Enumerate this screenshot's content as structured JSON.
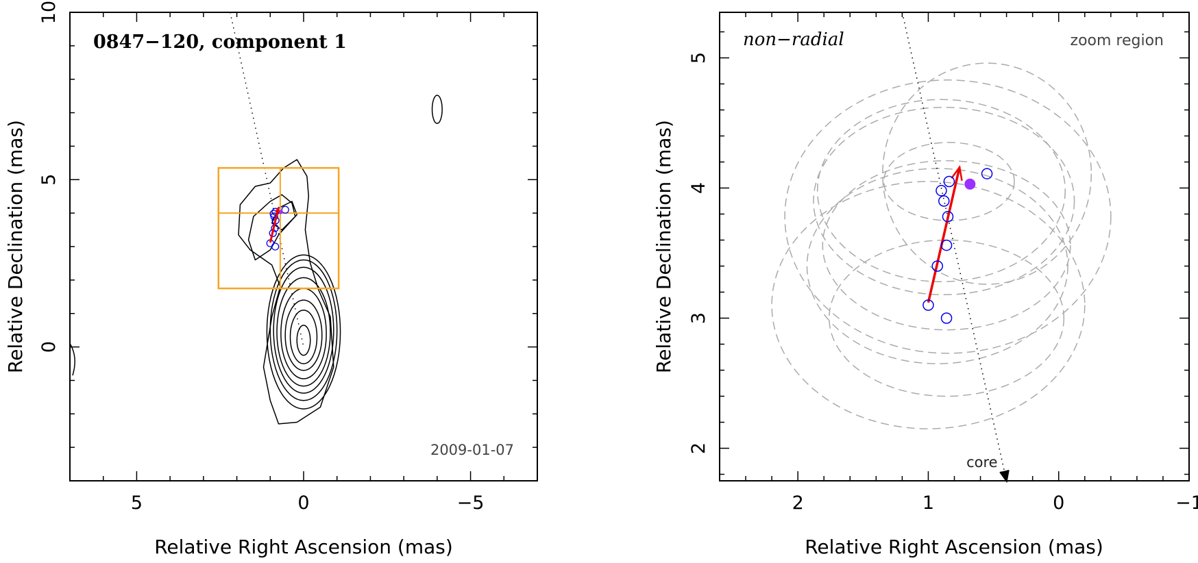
{
  "chart_data": [
    {
      "type": "contour",
      "title": "0847−120, component 1",
      "date_label": "2009-01-07",
      "xlabel": "Relative Right Ascension (mas)",
      "ylabel": "Relative Declination (mas)",
      "xlim": [
        7,
        -7
      ],
      "ylim": [
        -4,
        10
      ],
      "xticks": [
        {
          "value": 5,
          "label": "5"
        },
        {
          "value": 0,
          "label": "0"
        },
        {
          "value": -5,
          "label": "−5"
        }
      ],
      "yticks": [
        {
          "value": 0,
          "label": "0"
        },
        {
          "value": 5,
          "label": "5"
        },
        {
          "value": 10,
          "label": "10"
        }
      ],
      "zoom_box": {
        "x_from": 2.55,
        "x_to": -1.05,
        "y_from": 1.75,
        "y_to": 5.35,
        "cross_x": 0.7,
        "cross_y": 4.0,
        "color": "#f5a623"
      },
      "core": {
        "x": 0.0,
        "y": 0.0
      },
      "contours": [
        {
          "cx": 0.0,
          "cy": 0.2,
          "rx": 0.2,
          "ry": 0.45
        },
        {
          "cx": 0.0,
          "cy": 0.3,
          "rx": 0.4,
          "ry": 0.8
        },
        {
          "cx": 0.0,
          "cy": 0.35,
          "rx": 0.55,
          "ry": 1.05
        },
        {
          "cx": 0.0,
          "cy": 0.4,
          "rx": 0.68,
          "ry": 1.35
        },
        {
          "cx": 0.0,
          "cy": 0.45,
          "rx": 0.8,
          "ry": 1.62
        },
        {
          "cx": 0.0,
          "cy": 0.5,
          "rx": 0.9,
          "ry": 1.88
        },
        {
          "cx": 0.0,
          "cy": 0.5,
          "rx": 1.0,
          "ry": 2.1
        },
        {
          "cx": 0.0,
          "cy": 0.45,
          "rx": 1.1,
          "ry": 2.3
        },
        {
          "cx": -4.0,
          "cy": 7.1,
          "rx": 0.15,
          "ry": 0.42
        }
      ],
      "outer_contour": [
        [
          0.75,
          -2.3
        ],
        [
          0.2,
          -2.25
        ],
        [
          -0.5,
          -1.8
        ],
        [
          -0.9,
          -0.6
        ],
        [
          -0.8,
          0.9
        ],
        [
          -0.45,
          1.7
        ],
        [
          -0.2,
          2.5
        ],
        [
          -0.05,
          3.5
        ],
        [
          -0.15,
          4.5
        ],
        [
          -0.1,
          5.1
        ],
        [
          0.2,
          5.6
        ],
        [
          0.6,
          5.35
        ],
        [
          1.0,
          4.9
        ],
        [
          1.45,
          4.8
        ],
        [
          1.9,
          4.25
        ],
        [
          1.95,
          3.35
        ],
        [
          1.6,
          2.9
        ],
        [
          0.95,
          2.45
        ],
        [
          0.7,
          1.8
        ],
        [
          0.95,
          0.9
        ],
        [
          1.2,
          -0.6
        ],
        [
          1.0,
          -1.6
        ]
      ],
      "inner_contour": [
        [
          0.65,
          4.55
        ],
        [
          0.35,
          4.3
        ],
        [
          0.25,
          3.9
        ],
        [
          0.75,
          3.35
        ],
        [
          1.0,
          2.9
        ],
        [
          1.45,
          2.6
        ],
        [
          1.65,
          3.2
        ],
        [
          1.5,
          3.9
        ],
        [
          1.0,
          4.35
        ]
      ],
      "inner_contour_2": [
        [
          0.35,
          4.35
        ],
        [
          0.2,
          3.95
        ],
        [
          0.65,
          3.5
        ],
        [
          0.95,
          3.7
        ],
        [
          0.75,
          4.15
        ]
      ],
      "dotted_path": [
        [
          2.2,
          10.0
        ],
        [
          0.0,
          0.0
        ]
      ],
      "circle_points": [
        {
          "x": 1.0,
          "y": 3.1
        },
        {
          "x": 0.85,
          "y": 3.0
        },
        {
          "x": 0.92,
          "y": 3.4
        },
        {
          "x": 0.86,
          "y": 3.55
        },
        {
          "x": 0.84,
          "y": 3.78
        },
        {
          "x": 0.88,
          "y": 3.9
        },
        {
          "x": 0.9,
          "y": 3.98
        },
        {
          "x": 0.84,
          "y": 4.04
        },
        {
          "x": 0.55,
          "y": 4.1
        }
      ],
      "filled_point": {
        "x": 0.68,
        "y": 4.03
      },
      "vector": {
        "from": [
          1.0,
          3.12
        ],
        "to": [
          0.76,
          4.14
        ]
      }
    },
    {
      "type": "scatter",
      "title": "non−radial",
      "zoom_label": "zoom region",
      "core_label": "core",
      "xlabel": "Relative Right Ascension (mas)",
      "ylabel": "Relative Declination (mas)",
      "xlim": [
        2.6,
        -1.0
      ],
      "ylim": [
        1.75,
        5.35
      ],
      "xticks": [
        {
          "value": 2,
          "label": "2"
        },
        {
          "value": 1,
          "label": "1"
        },
        {
          "value": 0,
          "label": "0"
        },
        {
          "value": -1,
          "label": "−1"
        }
      ],
      "yticks": [
        {
          "value": 2,
          "label": "2"
        },
        {
          "value": 3,
          "label": "3"
        },
        {
          "value": 4,
          "label": "4"
        },
        {
          "value": 5,
          "label": "5"
        }
      ],
      "circle_points": [
        {
          "x": 1.0,
          "y": 3.1
        },
        {
          "x": 0.86,
          "y": 3.0
        },
        {
          "x": 0.93,
          "y": 3.4
        },
        {
          "x": 0.86,
          "y": 3.56
        },
        {
          "x": 0.85,
          "y": 3.78
        },
        {
          "x": 0.88,
          "y": 3.9
        },
        {
          "x": 0.9,
          "y": 3.98
        },
        {
          "x": 0.84,
          "y": 4.05
        },
        {
          "x": 0.55,
          "y": 4.11
        }
      ],
      "filled_point": {
        "x": 0.68,
        "y": 4.03
      },
      "vector": {
        "from": [
          1.0,
          3.12
        ],
        "to": [
          0.76,
          4.16
        ]
      },
      "dotted_path": [
        [
          1.2,
          5.35
        ],
        [
          0.4,
          1.75
        ]
      ],
      "error_ellipses": [
        {
          "cx": 1.0,
          "cy": 3.1,
          "rx": 1.2,
          "ry": 0.95
        },
        {
          "cx": 0.86,
          "cy": 3.0,
          "rx": 0.9,
          "ry": 0.6
        },
        {
          "cx": 0.93,
          "cy": 3.4,
          "rx": 1.0,
          "ry": 0.75
        },
        {
          "cx": 0.86,
          "cy": 3.56,
          "rx": 0.95,
          "ry": 0.65
        },
        {
          "cx": 0.85,
          "cy": 3.78,
          "rx": 1.25,
          "ry": 1.05
        },
        {
          "cx": 0.88,
          "cy": 3.9,
          "rx": 1.0,
          "ry": 0.72
        },
        {
          "cx": 0.9,
          "cy": 3.98,
          "rx": 0.95,
          "ry": 0.7
        },
        {
          "cx": 0.84,
          "cy": 4.05,
          "rx": 0.5,
          "ry": 0.3
        },
        {
          "cx": 0.55,
          "cy": 4.11,
          "rx": 0.8,
          "ry": 0.85
        }
      ]
    }
  ]
}
